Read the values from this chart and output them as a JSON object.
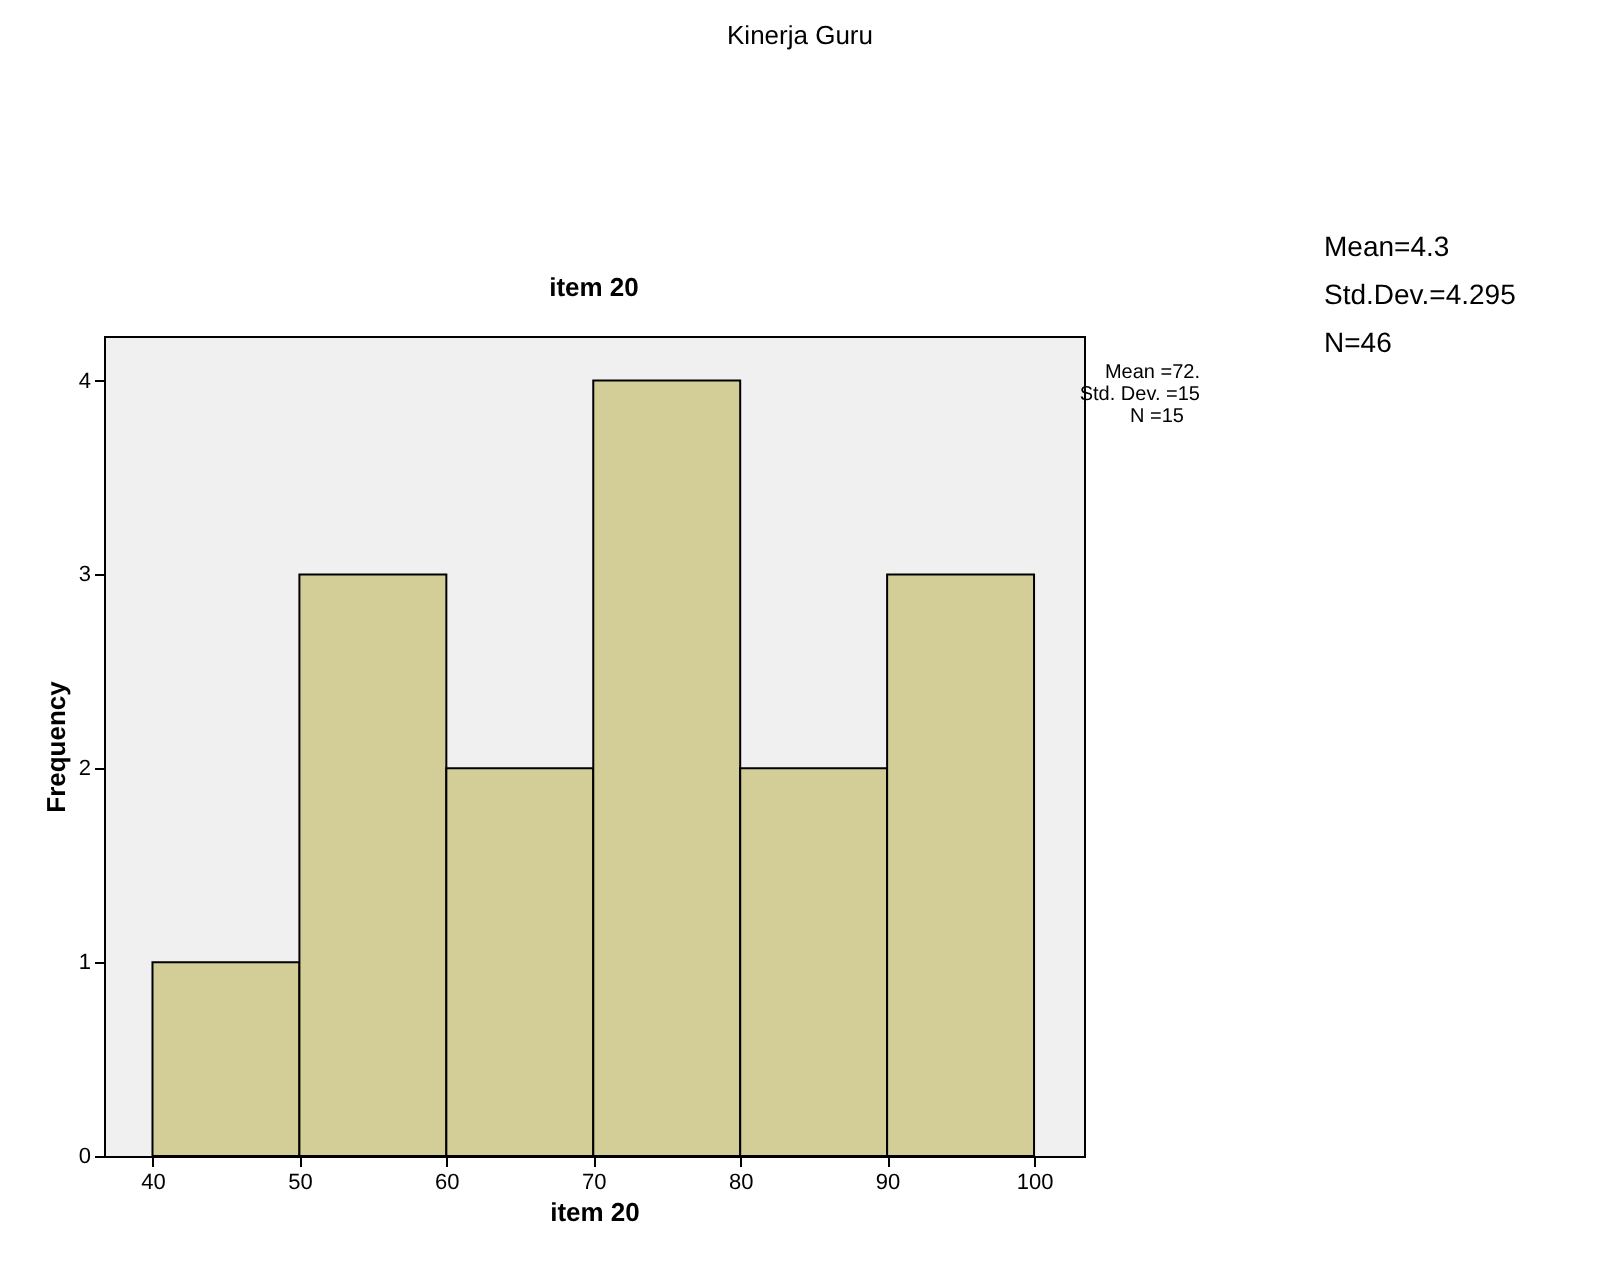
{
  "chart_data": {
    "type": "histogram",
    "title": "item 20",
    "xlabel": "item 20",
    "ylabel": "Frequency",
    "bins": [
      40,
      50,
      60,
      70,
      80,
      90,
      100
    ],
    "values": [
      1,
      3,
      2,
      4,
      2,
      3
    ],
    "color": "#d3ce98",
    "xlim": [
      36.7,
      103.4
    ],
    "ylim": [
      0,
      4.23
    ],
    "xticks": [
      40,
      50,
      60,
      70,
      80,
      90,
      100
    ],
    "yticks": [
      0,
      1,
      2,
      3,
      4
    ],
    "grid": false,
    "annotations": [
      "Kinerja Guru",
      "Mean =72.",
      "Std. Dev. =15",
      "N =15",
      "Mean=4.3",
      "Std.Dev.=4.295",
      "N=46"
    ]
  }
}
